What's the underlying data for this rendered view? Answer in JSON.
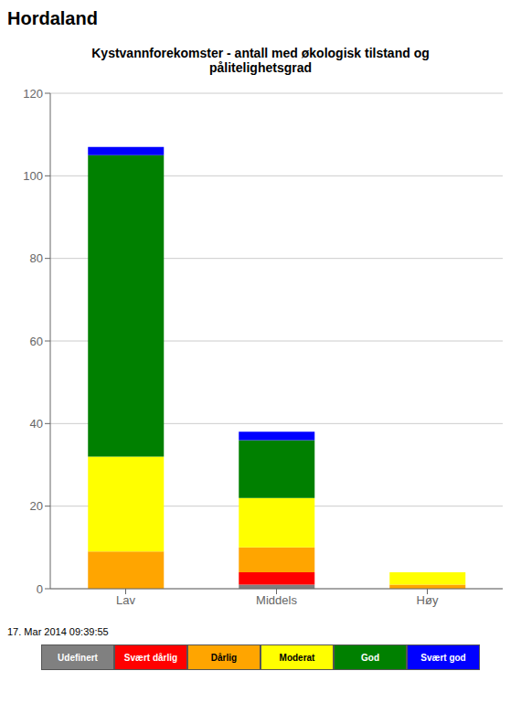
{
  "chart_data": {
    "type": "bar",
    "stacked": true,
    "subtitle": "Hordaland",
    "title": "Kystvannforekomster - antall med økologisk tilstand og\npålitelighetsgrad",
    "categories": [
      "Lav",
      "Middels",
      "Høy"
    ],
    "series": [
      {
        "name": "Udefinert",
        "color": "#808080",
        "values": [
          0,
          1,
          0
        ]
      },
      {
        "name": "Svært dårlig",
        "color": "#FF0000",
        "values": [
          0,
          3,
          0
        ]
      },
      {
        "name": "Dårlig",
        "color": "#FFA500",
        "values": [
          9,
          6,
          1
        ]
      },
      {
        "name": "Moderat",
        "color": "#FFFF00",
        "values": [
          23,
          12,
          3
        ]
      },
      {
        "name": "God",
        "color": "#008000",
        "values": [
          73,
          14,
          0
        ]
      },
      {
        "name": "Svært god",
        "color": "#0000FF",
        "values": [
          2,
          2,
          0
        ]
      }
    ],
    "ylim": [
      0,
      120
    ],
    "yticks": [
      0,
      20,
      40,
      60,
      80,
      100,
      120
    ],
    "grid": true,
    "legend": "bottom",
    "annotations": [
      "17. Mar 2014 09:39:55"
    ]
  }
}
